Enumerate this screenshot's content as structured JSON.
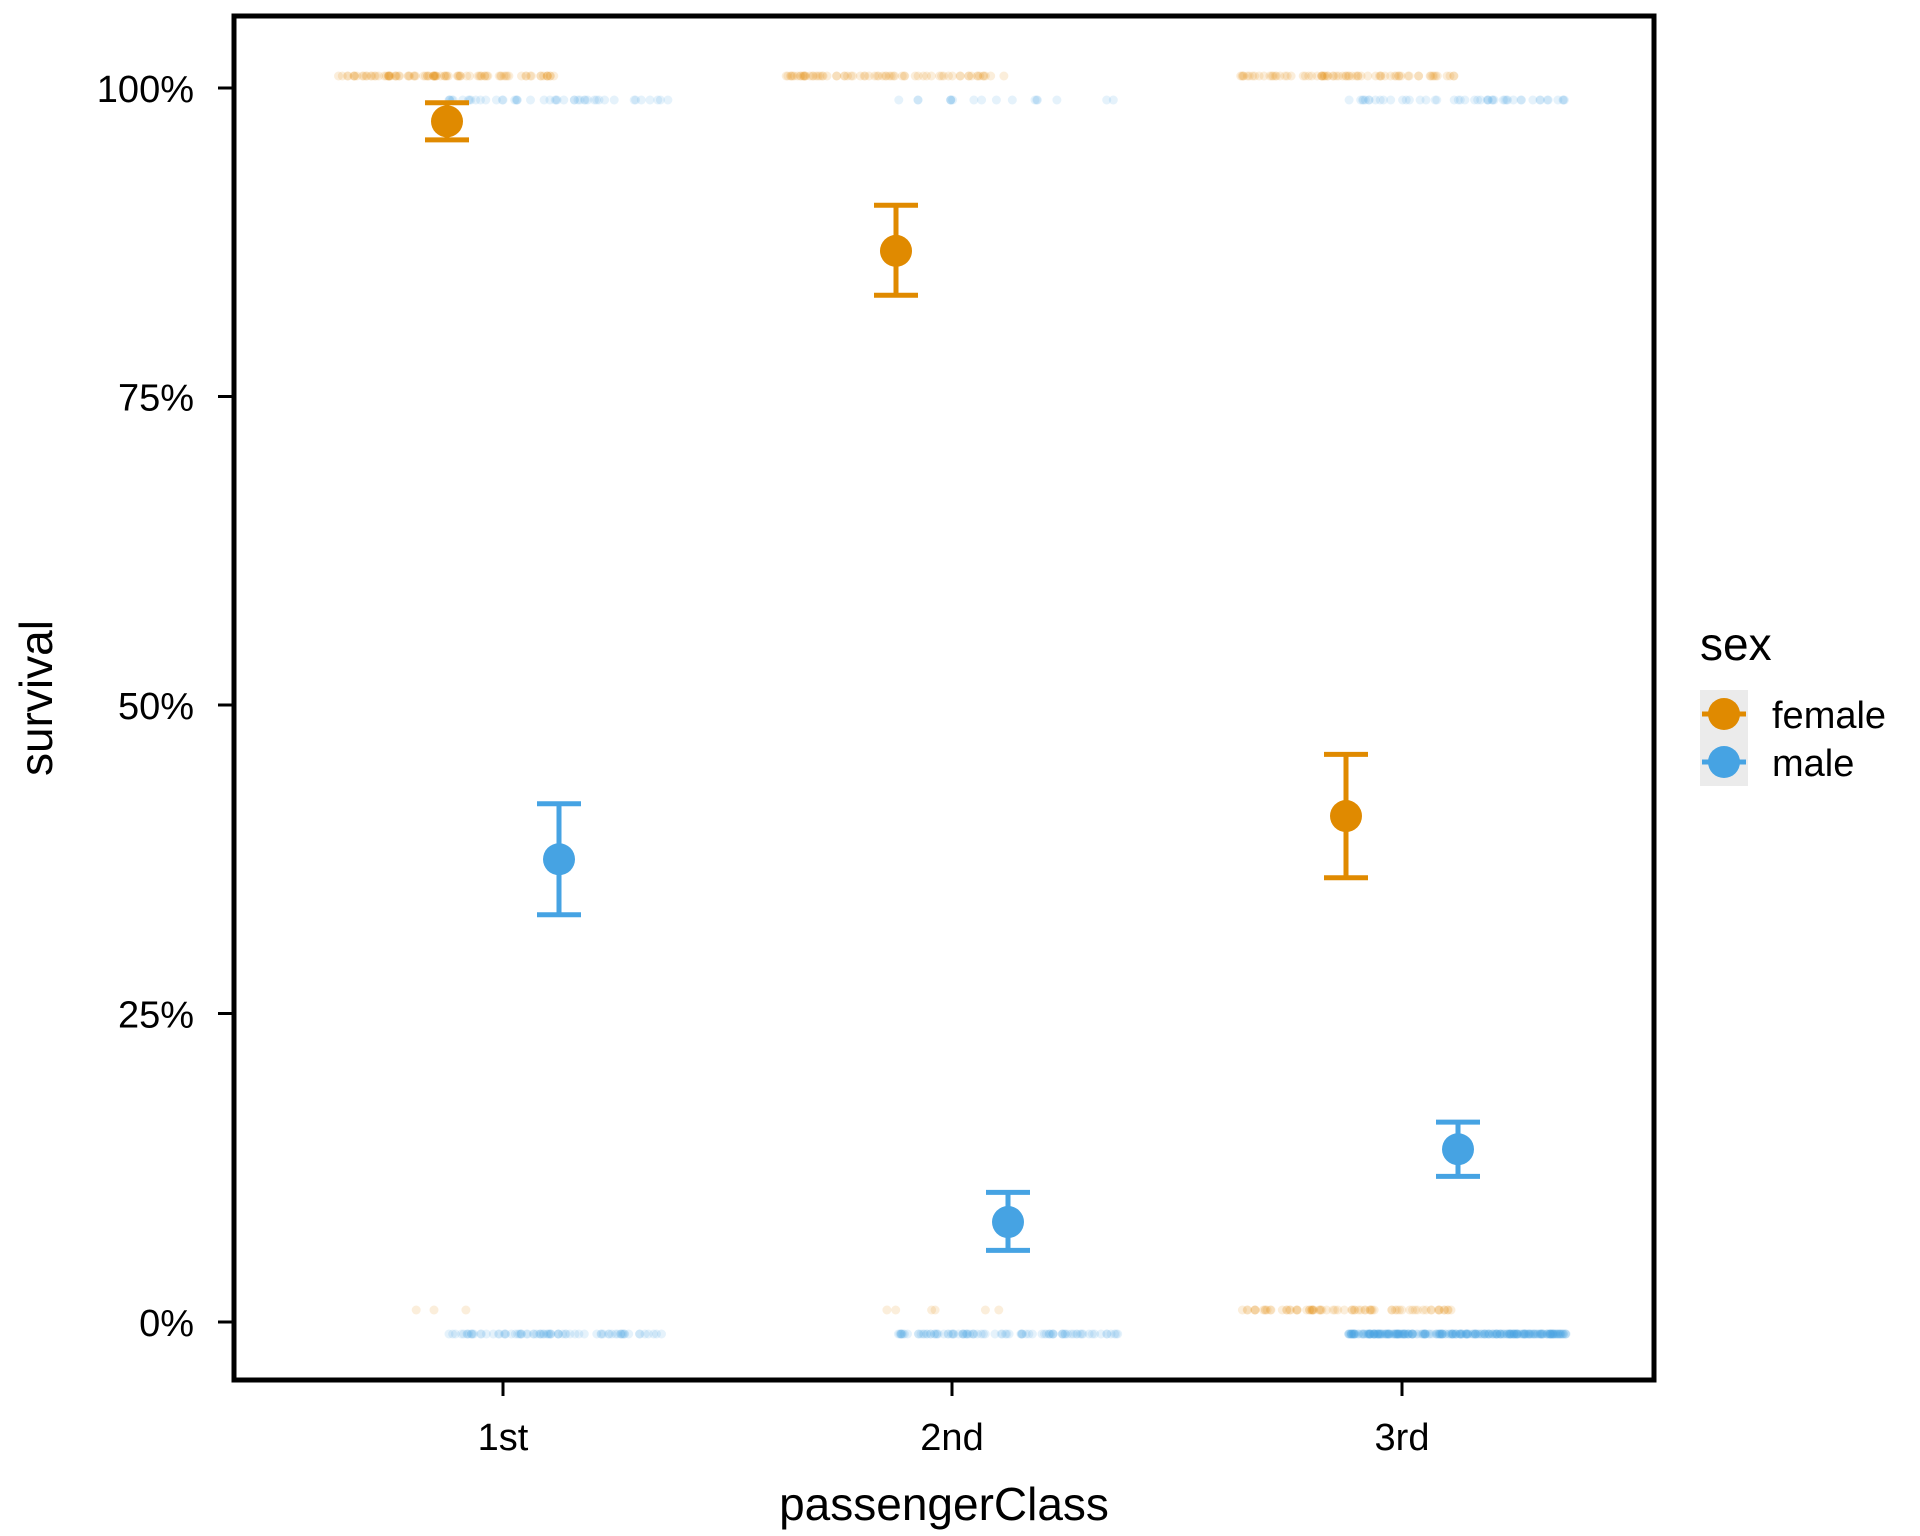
{
  "chart_data": {
    "type": "scatter",
    "xlabel": "passengerClass",
    "ylabel": "survival",
    "categories": [
      "1st",
      "2nd",
      "3rd"
    ],
    "y_ticks": [
      "0%",
      "25%",
      "50%",
      "75%",
      "100%"
    ],
    "ylim": [
      -0.06,
      1.06
    ],
    "legend": {
      "title": "sex",
      "position": "right",
      "entries": [
        "female",
        "male"
      ]
    },
    "colors": {
      "female": "#E08A00",
      "male": "#46A3E3"
    },
    "series": [
      {
        "name": "female",
        "estimates": [
          0.973,
          0.868,
          0.41
        ],
        "ci_low": [
          0.958,
          0.832,
          0.36
        ],
        "ci_high": [
          0.988,
          0.905,
          0.46
        ]
      },
      {
        "name": "male",
        "estimates": [
          0.375,
          0.081,
          0.14
        ],
        "ci_low": [
          0.33,
          0.058,
          0.118
        ],
        "ci_high": [
          0.42,
          0.105,
          0.162
        ]
      }
    ],
    "raw_points_note_free": true,
    "raw_points": {
      "female": {
        "survived": [
          91,
          70,
          72
        ],
        "died": [
          3,
          6,
          72
        ]
      },
      "male": {
        "survived": [
          45,
          17,
          47
        ],
        "died": [
          77,
          91,
          300
        ]
      }
    }
  }
}
